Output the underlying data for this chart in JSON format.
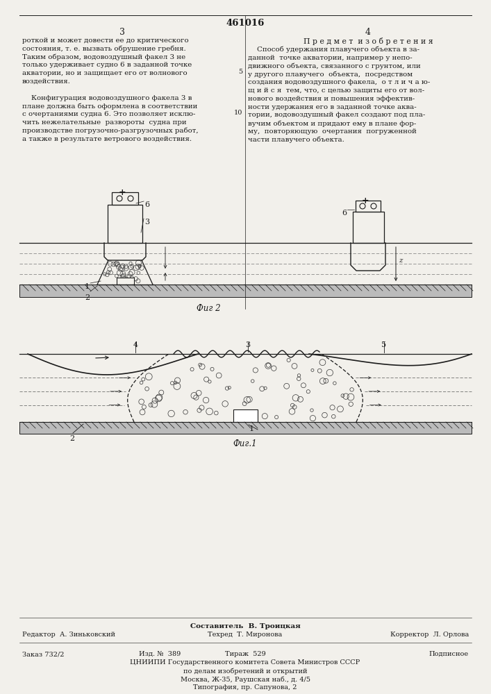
{
  "patent_number": "461016",
  "page_numbers": [
    "3",
    "4"
  ],
  "bg_color": "#f2f0eb",
  "text_color": "#1a1a1a",
  "left_column_text": [
    "роткой и может довести ее до критического",
    "состояния, т. е. вызвать обрушение гребня.",
    "Таким образом, водовоздушный факел 3 не",
    "только удерживает судно 6 в заданной точке",
    "акватории, но и защищает его от волнового",
    "воздействия.",
    "",
    "    Конфигурация водовоздушного факела 3 в",
    "плане должна быть оформлена в соответствии",
    "с очертаниями судна 6. Это позволяет исклю-",
    "чить нежелательные  развороты  судна при",
    "производстве погрузочно-разгрузочных работ,",
    "а также в результате ветрового воздействия."
  ],
  "right_column_header": "П р е д м е т  и з о б р е т е н и я",
  "right_column_text": [
    "    Способ удержания плавучего объекта в за-",
    "данной  точке акватории, например у непо-",
    "движного объекта, связанного с грунтом, или",
    "у другого плавучего  объекта,  посредством",
    "создания водовоздушного факела,  о т л и ч а ю-",
    "щ и й с я  тем, что, с целью защиты его от вол-",
    "нового воздействия и повышения эффектив-",
    "ности удержания его в заданной точке аква-",
    "тории, водовоздушный факел создают под пла-",
    "вучим объектом и придают ему в плане фор-",
    "му,  повторяющую  очертания  погруженной",
    "части плавучего объекта."
  ],
  "line_number_5": "5",
  "line_number_10": "10",
  "fig1_caption": "Фиг.1",
  "fig2_caption": "Фиг 2",
  "footer_composer": "Составитель  В. Троицкая",
  "footer_editor": "Редактор  А. Зиньковский",
  "footer_tech": "Техред  Т. Миронова",
  "footer_corrector": "Корректор  Л. Орлова",
  "footer_order": "Заказ 732/2",
  "footer_izd": "Изд. №  389",
  "footer_tirazh": "Тираж  529",
  "footer_podp": "Подписное",
  "footer_cniip": "ЦНИИПИ Государственного комитета Совета Министров СССР",
  "footer_po": "по делам изобретений и открытий",
  "footer_moscow": "Москва, Ж-35, Раушская наб., д. 4/5",
  "footer_tipograf": "Типография, пр. Сапунова, 2"
}
